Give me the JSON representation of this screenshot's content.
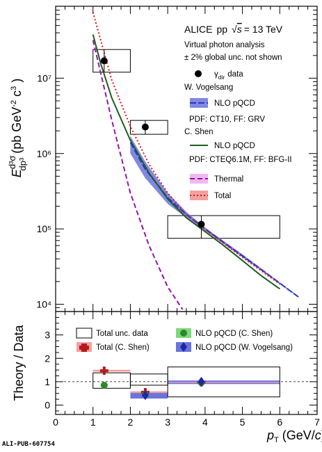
{
  "footer": "ALI-PUB-607754",
  "legend": {
    "title": "ALICE",
    "system": "pp",
    "energy": "= 13 TeV",
    "line1": "Virtual photon analysis",
    "line2": "± 2% global unc. not shown",
    "data": "γ",
    "data_sub": "dir",
    "data_tail": "data",
    "author1": "W. Vogelsang",
    "nlo1": "NLO pQCD",
    "pdf1": "PDF: CT10, FF: GRV",
    "author2": "C. Shen",
    "nlo2": "NLO pQCD",
    "pdf2": "PDF: CTEQ6.1M, FF: BFG-II",
    "thermal": "Thermal",
    "total": "Total"
  },
  "ratio_legend": {
    "total_unc": "Total unc. data",
    "shen": "NLO pQCD (C. Shen)",
    "total_shen": "Total (C. Shen)",
    "vogelsang": "NLO pQCD (W. Vogelsang)"
  },
  "colors": {
    "data": "#000000",
    "vogelsang": "#2b35c9",
    "vogelsang_band": "#6b73dd",
    "shen": "#1d5e1d",
    "thermal": "#9a0fae",
    "total": "#e41111",
    "total_band": "#f3a0a0",
    "thermal_band": "#f1b7f3",
    "shen_marker": "#2a8a2a",
    "total_marker": "#b51b1b"
  },
  "chart_data": [
    {
      "type": "line",
      "ylabel": "E d³σ / dp³ (pb GeV⁻² c³)",
      "ylim": [
        8000,
        90000000
      ],
      "yscale": "log",
      "xlim": [
        0,
        7
      ],
      "y_ticks": [
        {
          "v": 10000,
          "label": "10⁴"
        },
        {
          "v": 100000,
          "label": "10⁵"
        },
        {
          "v": 1000000,
          "label": "10⁶"
        },
        {
          "v": 10000000,
          "label": "10⁷"
        }
      ],
      "data": {
        "name": "γdir data",
        "points": [
          {
            "x": 1.3,
            "y": 17000000,
            "xlo": 1.0,
            "xhi": 2.0,
            "ylo": 12000000,
            "yhi": 24000000
          },
          {
            "x": 2.4,
            "y": 2250000,
            "xlo": 2.0,
            "xhi": 3.0,
            "ylo": 1800000,
            "yhi": 2750000
          },
          {
            "x": 3.9,
            "y": 115000,
            "xlo": 3.0,
            "xhi": 6.0,
            "ylo": 75000,
            "yhi": 150000
          }
        ]
      },
      "series": [
        {
          "name": "NLO pQCD (W. Vogelsang)",
          "style": "dash",
          "x": [
            2.0,
            2.4,
            3.0,
            3.5,
            4.0,
            4.5,
            5.0,
            5.5,
            6.0,
            6.5
          ],
          "y": [
            1400000,
            620000,
            260000,
            155000,
            100000,
            66000,
            44000,
            29000,
            19000,
            12500
          ],
          "band_lo": [
            1000000,
            470000,
            215000,
            140000,
            95000,
            63000,
            42000,
            28000,
            18500,
            12200
          ],
          "band_hi": [
            1700000,
            780000,
            300000,
            168000,
            104000,
            69000,
            46000,
            30000,
            19500,
            12800
          ]
        },
        {
          "name": "NLO pQCD (C. Shen)",
          "style": "solid",
          "x": [
            1.0,
            1.2,
            1.5,
            2.0,
            2.5,
            3.0,
            3.5,
            4.0,
            4.5,
            5.0,
            5.5,
            6.0
          ],
          "y": [
            38000000,
            16000000,
            5500000,
            1500000,
            550000,
            250000,
            140000,
            92000,
            60000,
            38000,
            24000,
            16000
          ]
        },
        {
          "name": "Thermal",
          "style": "dash",
          "x": [
            1.0,
            1.5,
            2.0,
            2.5,
            3.0,
            3.4
          ],
          "y": [
            32000000,
            2800000,
            300000,
            60000,
            17000,
            8500
          ]
        },
        {
          "name": "Total",
          "style": "dot",
          "x": [
            1.0,
            1.5,
            2.0,
            2.5,
            3.0,
            3.5,
            4.0,
            5.0,
            6.0
          ],
          "y": [
            75000000,
            9500000,
            2300000,
            720000,
            300000,
            155000,
            98000,
            42000,
            18500
          ]
        }
      ]
    },
    {
      "type": "scatter",
      "xlabel": "p_T (GeV/c)",
      "ylabel": "Theory / Data",
      "xlim": [
        0,
        7
      ],
      "ylim": [
        -0.4,
        4.0
      ],
      "x_ticks": [
        0,
        1,
        2,
        3,
        4,
        5,
        6,
        7
      ],
      "y_ticks": [
        0,
        1,
        2,
        3
      ],
      "total_unc_boxes": [
        {
          "xlo": 1.0,
          "xhi": 2.0,
          "ylo": 0.72,
          "yhi": 1.38
        },
        {
          "xlo": 2.0,
          "xhi": 3.0,
          "ylo": 0.85,
          "yhi": 1.33
        },
        {
          "xlo": 3.0,
          "xhi": 6.0,
          "ylo": 0.35,
          "yhi": 1.63
        }
      ],
      "series": [
        {
          "name": "Total (C. Shen)",
          "marker": "cross",
          "points": [
            {
              "x": 1.3,
              "y": 1.47
            },
            {
              "x": 2.4,
              "y": 0.55
            },
            {
              "x": 3.9,
              "y": 0.97
            }
          ]
        },
        {
          "name": "NLO pQCD (C. Shen)",
          "marker": "circle",
          "points": [
            {
              "x": 1.3,
              "y": 0.85
            },
            {
              "x": 2.4,
              "y": 0.45
            },
            {
              "x": 3.9,
              "y": 0.96
            }
          ]
        },
        {
          "name": "NLO pQCD (W. Vogelsang)",
          "marker": "diamond",
          "points": [
            {
              "x": 2.4,
              "y": 0.42
            },
            {
              "x": 3.9,
              "y": 1.0
            }
          ],
          "bands": [
            {
              "xlo": 2.0,
              "xhi": 3.0,
              "ylo": 0.28,
              "yhi": 0.52
            },
            {
              "xlo": 3.0,
              "xhi": 6.0,
              "ylo": 0.9,
              "yhi": 1.05
            }
          ]
        }
      ]
    }
  ]
}
